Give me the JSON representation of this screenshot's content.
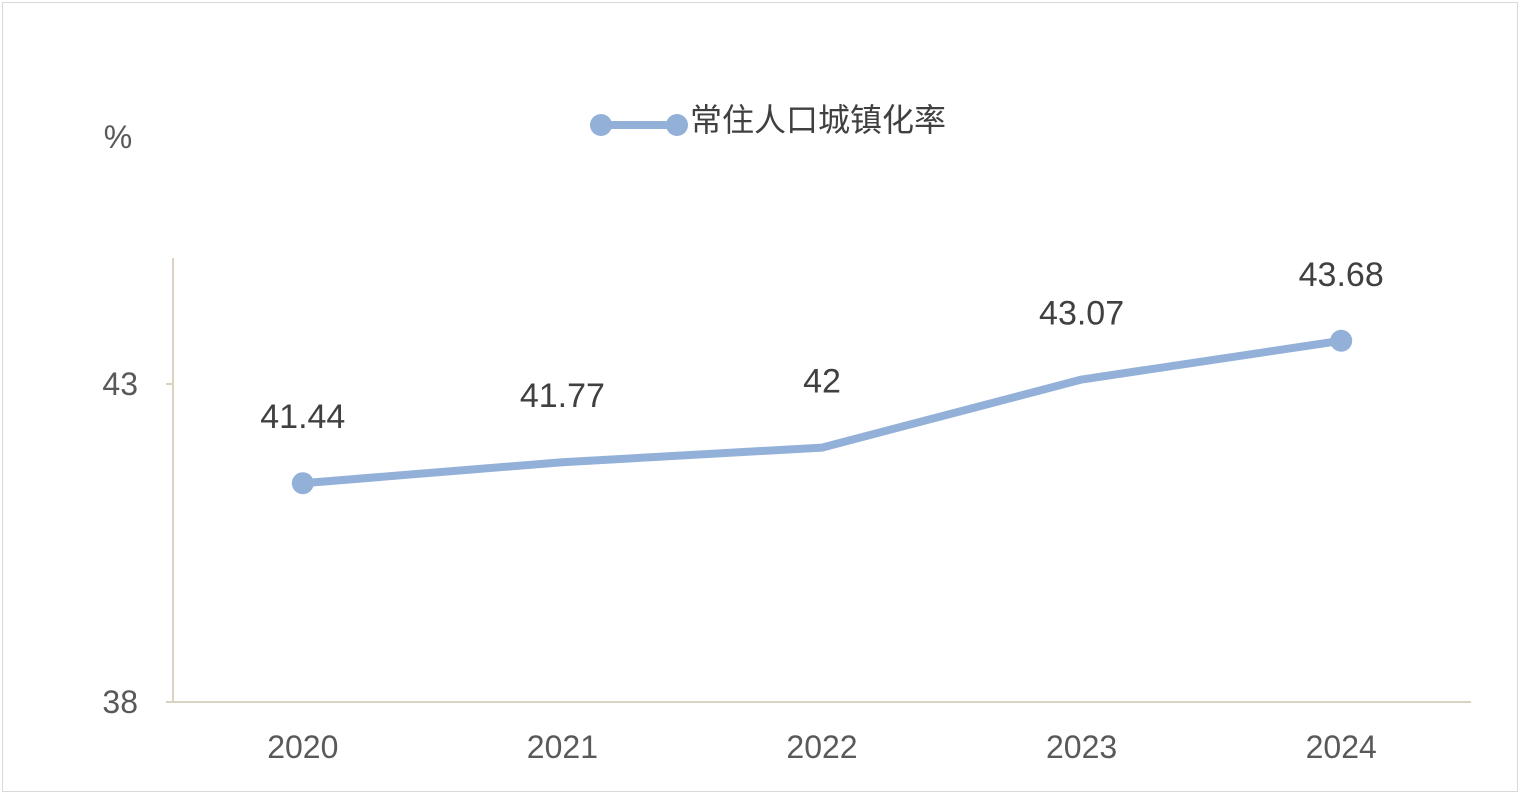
{
  "chart_data": {
    "type": "line",
    "categories": [
      "2020",
      "2021",
      "2022",
      "2023",
      "2024"
    ],
    "series": [
      {
        "name": "常住人口城镇化率",
        "values": [
          41.44,
          41.77,
          42,
          43.07,
          43.68
        ]
      }
    ],
    "ylabel": "%",
    "ylim": [
      38,
      43
    ],
    "yticks": [
      "38",
      "43"
    ],
    "data_labels": [
      "41.44",
      "41.77",
      "42",
      "43.07",
      "43.68"
    ],
    "legend_position": "top",
    "grid": false,
    "colors": {
      "line": "#92b0d8",
      "axis": "#d9d3c0"
    }
  }
}
